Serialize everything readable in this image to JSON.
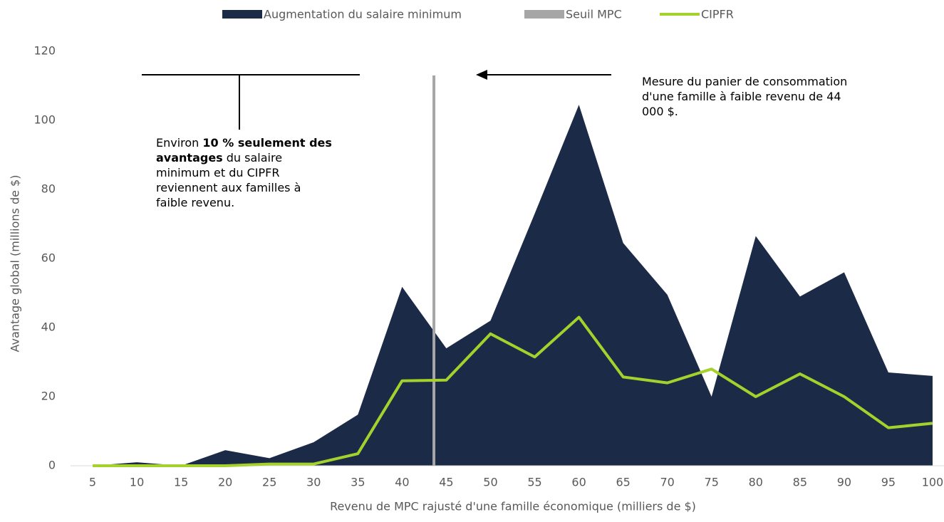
{
  "chart_data": {
    "type": "area",
    "x": [
      5,
      10,
      15,
      20,
      25,
      30,
      35,
      40,
      45,
      50,
      55,
      60,
      65,
      70,
      75,
      80,
      85,
      90,
      95,
      100
    ],
    "xlim": [
      2.5,
      102.5
    ],
    "xticks": [
      5,
      10,
      15,
      20,
      25,
      30,
      35,
      40,
      45,
      50,
      55,
      60,
      65,
      70,
      75,
      80,
      85,
      90,
      95,
      100
    ],
    "ylim": [
      0,
      120
    ],
    "yticks": [
      0,
      20,
      40,
      60,
      80,
      100,
      120
    ],
    "xlabel": "Revenu de MPC rajusté d'une famille économique (milliers de $)",
    "ylabel": "Avantage global (millions de $)",
    "series": [
      {
        "name": "Augmentation du salaire minimum",
        "type": "area",
        "color": "#1b2a47",
        "values": [
          0,
          1,
          0,
          4.5,
          2.2,
          6.8,
          14.8,
          51.8,
          34,
          42,
          73,
          104.5,
          64.5,
          49.5,
          20,
          66.5,
          49,
          56,
          27,
          26
        ]
      },
      {
        "name": "CIPFR",
        "type": "line",
        "color": "#a4d12b",
        "values": [
          0,
          0,
          0,
          0,
          0.5,
          0.5,
          3.5,
          24.6,
          24.8,
          38.2,
          31.5,
          43,
          25.7,
          24,
          28,
          20,
          26.6,
          20,
          11,
          12.3
        ]
      }
    ],
    "threshold": {
      "name": "Seuil MPC",
      "color": "#a6a6a6",
      "x": 43.6,
      "top": 113
    },
    "annotations": [
      {
        "parts": [
          {
            "text": "Environ ",
            "bold": false
          },
          {
            "text": "10 % seulement des avantages",
            "bold": true
          },
          {
            "text": " du salaire minimum et du CIPFR reviennent aux familles à faible revenu.",
            "bold": false
          }
        ]
      },
      {
        "parts": [
          {
            "text": "Mesure du panier de consommation d'une famille à faible revenu de 44 000 $.",
            "bold": false
          }
        ]
      }
    ]
  }
}
